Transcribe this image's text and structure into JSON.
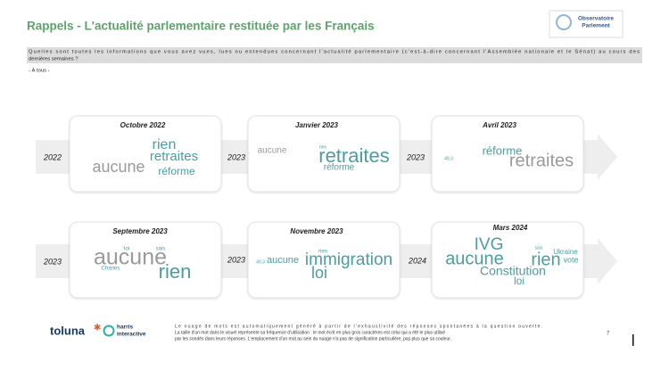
{
  "header": {
    "title": "Rappels -  L'actualité parlementaire restituée par les Français",
    "logo": [
      "Observatoire",
      "Parlement"
    ]
  },
  "question": [
    "Quelles sont toutes les informations que vous avez vues, lues ou entendues concernant l'actualité parlementaire (c'est-à-dire concernant l'Assemblée nationale et le Sénat) au cours des",
    "dernières semaines ?"
  ],
  "audience": "- À tous -",
  "timeline": {
    "rows": [
      {
        "years": [
          "2022",
          "2023",
          "2023"
        ],
        "panels": [
          {
            "title": "Octobre 2022",
            "words": [
              "rien",
              "retraites",
              "aucune",
              "réforme"
            ]
          },
          {
            "title": "Janvier 2023",
            "words": [
              "aucune",
              "retraites",
              "réforme",
              "rien"
            ]
          },
          {
            "title": "Avril 2023",
            "words": [
              "réforme",
              "retraites",
              "49,3"
            ]
          }
        ]
      },
      {
        "years": [
          "2023",
          "2023",
          "2024"
        ],
        "panels": [
          {
            "title": "Septembre 2023",
            "words": [
              "aucune",
              "rien",
              "loi",
              "sais",
              "Charles"
            ]
          },
          {
            "title": "Novembre 2023",
            "words": [
              "aucune",
              "immigration",
              "loi",
              "rien",
              "49,3"
            ]
          },
          {
            "title": "Mars 2024",
            "words": [
              "IVG",
              "aucune",
              "rien",
              "Constitution",
              "loi",
              "Ukraine",
              "vote",
              "sais"
            ]
          }
        ]
      }
    ]
  },
  "footer": {
    "brand": "toluna",
    "partner": [
      "harris",
      "interactive"
    ],
    "note": [
      "Le nuage de mots est automatiquement généré à partir de l'exhaustivité des réponses spontanées à la question ouverte.",
      "La taille d'un mot dans le visuel représente sa fréquence d'utilisation : le mot écrit en plus gros caractères est celui qui a été le plus utilisé",
      "par les sondés dans leurs réponses. L'emplacement d'un mot au sein du nuage n'a pas de signification particulière, pas plus que sa couleur."
    ],
    "page_number": "7"
  }
}
